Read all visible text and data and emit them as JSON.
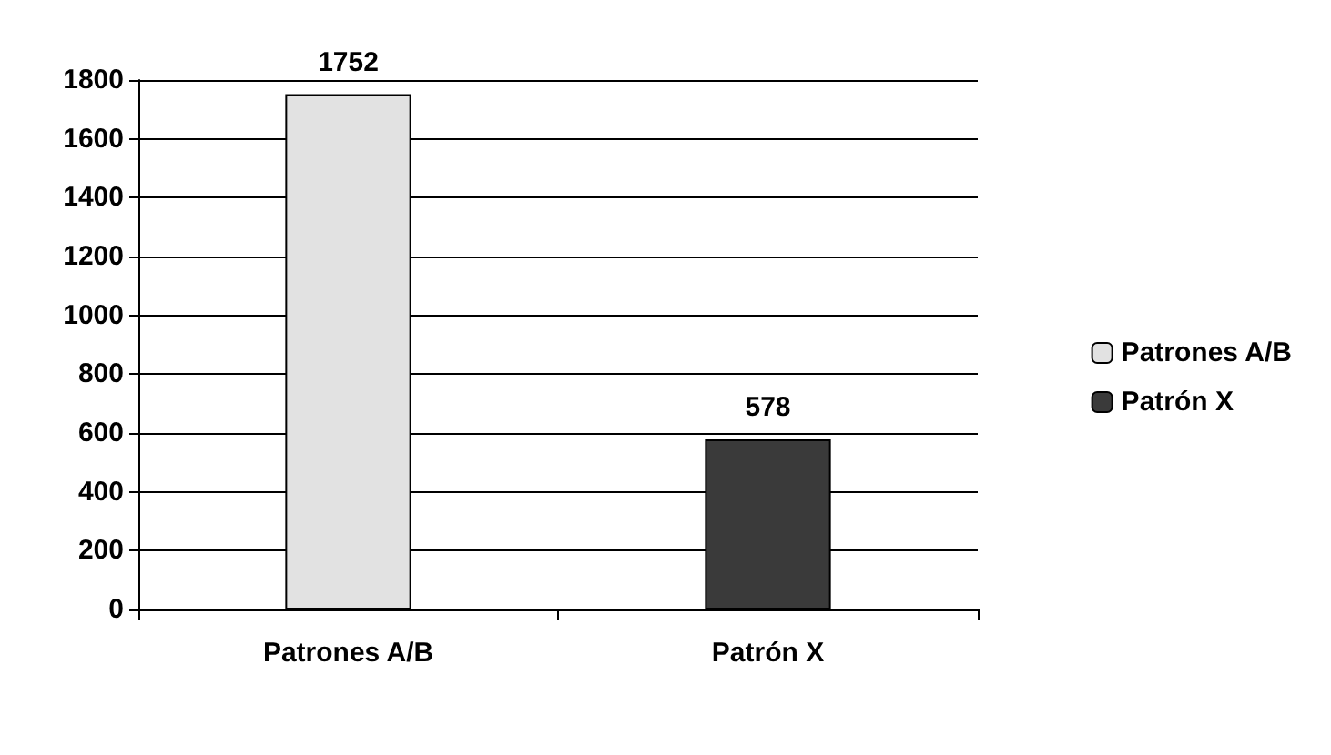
{
  "chart_data": {
    "type": "bar",
    "categories": [
      "Patrones A/B",
      "Patrón X"
    ],
    "series": [
      {
        "name": "Patrones A/B",
        "color": "#e2e2e2",
        "values": [
          1752,
          null
        ]
      },
      {
        "name": "Patrón X",
        "color": "#3a3a3a",
        "values": [
          null,
          578
        ]
      }
    ],
    "ylim": [
      0,
      1800
    ],
    "yticks": [
      0,
      200,
      400,
      600,
      800,
      1000,
      1200,
      1400,
      1600,
      1800
    ],
    "grid": "y",
    "legend": "right",
    "data_labels": true
  }
}
